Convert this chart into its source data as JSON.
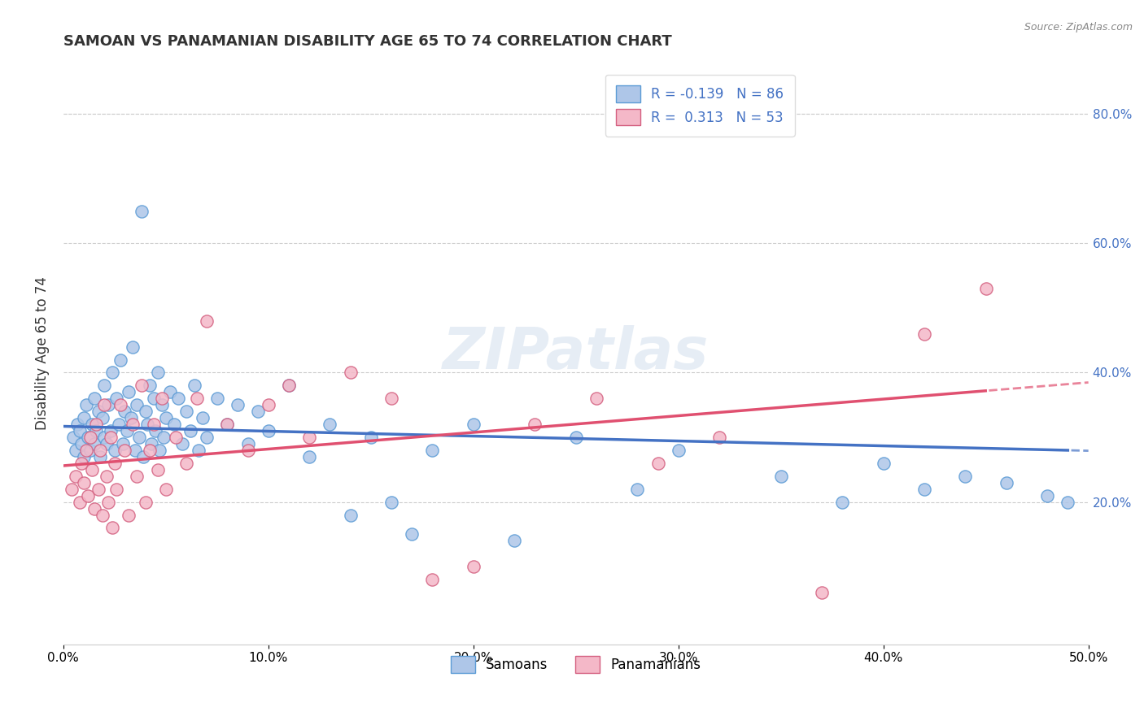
{
  "title": "SAMOAN VS PANAMANIAN DISABILITY AGE 65 TO 74 CORRELATION CHART",
  "source": "Source: ZipAtlas.com",
  "ylabel": "Disability Age 65 to 74",
  "xlim": [
    0.0,
    0.5
  ],
  "ylim": [
    -0.02,
    0.88
  ],
  "xtick_vals": [
    0.0,
    0.1,
    0.2,
    0.3,
    0.4,
    0.5
  ],
  "ytick_vals": [
    0.2,
    0.4,
    0.6,
    0.8
  ],
  "samoans_color": "#aec6e8",
  "samoans_edge_color": "#5b9bd5",
  "panamanians_color": "#f4b8c8",
  "panamanians_edge_color": "#d46080",
  "samoans_line_color": "#4472c4",
  "panamanians_line_color": "#e05070",
  "R_samoans": -0.139,
  "N_samoans": 86,
  "R_panamanians": 0.313,
  "N_panamanians": 53,
  "legend_label_samoans": "Samoans",
  "legend_label_panamanians": "Panamanians",
  "watermark": "ZIPatlas",
  "background_color": "#ffffff",
  "grid_color": "#cccccc",
  "samoans_x": [
    0.005,
    0.006,
    0.007,
    0.008,
    0.009,
    0.01,
    0.01,
    0.011,
    0.012,
    0.013,
    0.014,
    0.015,
    0.015,
    0.016,
    0.017,
    0.018,
    0.019,
    0.02,
    0.02,
    0.021,
    0.022,
    0.023,
    0.024,
    0.025,
    0.026,
    0.027,
    0.028,
    0.029,
    0.03,
    0.031,
    0.032,
    0.033,
    0.034,
    0.035,
    0.036,
    0.037,
    0.038,
    0.039,
    0.04,
    0.041,
    0.042,
    0.043,
    0.044,
    0.045,
    0.046,
    0.047,
    0.048,
    0.049,
    0.05,
    0.052,
    0.054,
    0.056,
    0.058,
    0.06,
    0.062,
    0.064,
    0.066,
    0.068,
    0.07,
    0.075,
    0.08,
    0.085,
    0.09,
    0.095,
    0.1,
    0.11,
    0.12,
    0.13,
    0.14,
    0.15,
    0.16,
    0.17,
    0.18,
    0.2,
    0.22,
    0.25,
    0.28,
    0.3,
    0.35,
    0.38,
    0.4,
    0.42,
    0.44,
    0.46,
    0.48,
    0.49
  ],
  "samoans_y": [
    0.3,
    0.28,
    0.32,
    0.31,
    0.29,
    0.33,
    0.27,
    0.35,
    0.3,
    0.28,
    0.32,
    0.29,
    0.36,
    0.31,
    0.34,
    0.27,
    0.33,
    0.3,
    0.38,
    0.29,
    0.35,
    0.31,
    0.4,
    0.28,
    0.36,
    0.32,
    0.42,
    0.29,
    0.34,
    0.31,
    0.37,
    0.33,
    0.44,
    0.28,
    0.35,
    0.3,
    0.65,
    0.27,
    0.34,
    0.32,
    0.38,
    0.29,
    0.36,
    0.31,
    0.4,
    0.28,
    0.35,
    0.3,
    0.33,
    0.37,
    0.32,
    0.36,
    0.29,
    0.34,
    0.31,
    0.38,
    0.28,
    0.33,
    0.3,
    0.36,
    0.32,
    0.35,
    0.29,
    0.34,
    0.31,
    0.38,
    0.27,
    0.32,
    0.18,
    0.3,
    0.2,
    0.15,
    0.28,
    0.32,
    0.14,
    0.3,
    0.22,
    0.28,
    0.24,
    0.2,
    0.26,
    0.22,
    0.24,
    0.23,
    0.21,
    0.2
  ],
  "panamanians_x": [
    0.004,
    0.006,
    0.008,
    0.009,
    0.01,
    0.011,
    0.012,
    0.013,
    0.014,
    0.015,
    0.016,
    0.017,
    0.018,
    0.019,
    0.02,
    0.021,
    0.022,
    0.023,
    0.024,
    0.025,
    0.026,
    0.028,
    0.03,
    0.032,
    0.034,
    0.036,
    0.038,
    0.04,
    0.042,
    0.044,
    0.046,
    0.048,
    0.05,
    0.055,
    0.06,
    0.065,
    0.07,
    0.08,
    0.09,
    0.1,
    0.11,
    0.12,
    0.14,
    0.16,
    0.18,
    0.2,
    0.23,
    0.26,
    0.29,
    0.32,
    0.37,
    0.42,
    0.45
  ],
  "panamanians_y": [
    0.22,
    0.24,
    0.2,
    0.26,
    0.23,
    0.28,
    0.21,
    0.3,
    0.25,
    0.19,
    0.32,
    0.22,
    0.28,
    0.18,
    0.35,
    0.24,
    0.2,
    0.3,
    0.16,
    0.26,
    0.22,
    0.35,
    0.28,
    0.18,
    0.32,
    0.24,
    0.38,
    0.2,
    0.28,
    0.32,
    0.25,
    0.36,
    0.22,
    0.3,
    0.26,
    0.36,
    0.48,
    0.32,
    0.28,
    0.35,
    0.38,
    0.3,
    0.4,
    0.36,
    0.08,
    0.1,
    0.32,
    0.36,
    0.26,
    0.3,
    0.06,
    0.46,
    0.53
  ]
}
